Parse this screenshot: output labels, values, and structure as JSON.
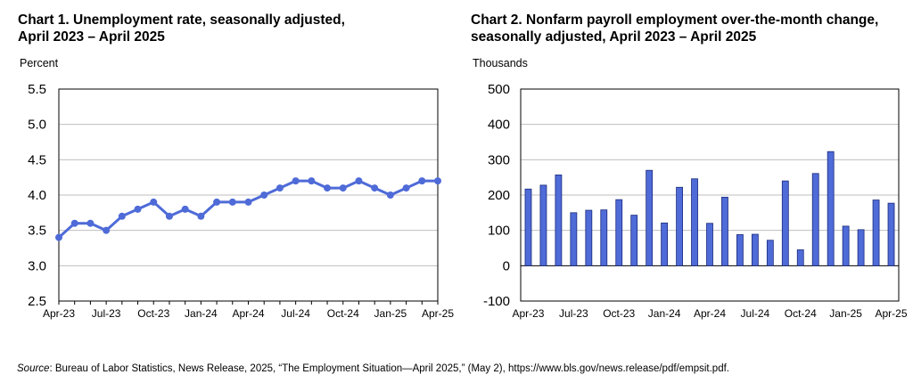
{
  "source_note": {
    "label": "Source",
    "text": ": Bureau of Labor Statistics, News Release, 2025, “The Employment Situation—April 2025,” (May 2), https://www.bls.gov/news.release/pdf/empsit.pdf."
  },
  "colors": {
    "series": "#4F6BD8",
    "bar_fill": "#4F6BD8",
    "bar_stroke": "#1a2a7a",
    "grid": "#bfbfbf"
  },
  "chart_data": [
    {
      "type": "line",
      "title": "Chart 1. Unemployment rate, seasonally adjusted,",
      "subtitle": "April 2023 – April 2025",
      "ylabel": "Percent",
      "ylim": [
        2.5,
        5.5
      ],
      "yticks": [
        "2.5",
        "3.0",
        "3.5",
        "4.0",
        "4.5",
        "5.0",
        "5.5"
      ],
      "grid": true,
      "legend": "none",
      "x": [
        "Apr-23",
        "May-23",
        "Jun-23",
        "Jul-23",
        "Aug-23",
        "Sep-23",
        "Oct-23",
        "Nov-23",
        "Dec-23",
        "Jan-24",
        "Feb-24",
        "Mar-24",
        "Apr-24",
        "May-24",
        "Jun-24",
        "Jul-24",
        "Aug-24",
        "Sep-24",
        "Oct-24",
        "Nov-24",
        "Dec-24",
        "Jan-25",
        "Feb-25",
        "Mar-25",
        "Apr-25"
      ],
      "xtick_labels": [
        "Apr-23",
        "Jul-23",
        "Oct-23",
        "Jan-24",
        "Apr-24",
        "Jul-24",
        "Oct-24",
        "Jan-25",
        "Apr-25"
      ],
      "values": [
        3.4,
        3.6,
        3.6,
        3.5,
        3.7,
        3.8,
        3.9,
        3.7,
        3.8,
        3.7,
        3.9,
        3.9,
        3.9,
        4.0,
        4.1,
        4.2,
        4.2,
        4.1,
        4.1,
        4.2,
        4.1,
        4.0,
        4.1,
        4.2,
        4.2
      ]
    },
    {
      "type": "bar",
      "title": "Chart 2. Nonfarm payroll employment over-the-month change,",
      "subtitle": "seasonally adjusted, April 2023 – April 2025",
      "ylabel": "Thousands",
      "ylim": [
        -100,
        500
      ],
      "yticks": [
        "-100",
        "0",
        "100",
        "200",
        "300",
        "400",
        "500"
      ],
      "grid": true,
      "legend": "none",
      "categories": [
        "Apr-23",
        "May-23",
        "Jun-23",
        "Jul-23",
        "Aug-23",
        "Sep-23",
        "Oct-23",
        "Nov-23",
        "Dec-23",
        "Jan-24",
        "Feb-24",
        "Mar-24",
        "Apr-24",
        "May-24",
        "Jun-24",
        "Jul-24",
        "Aug-24",
        "Sep-24",
        "Oct-24",
        "Nov-24",
        "Dec-24",
        "Jan-25",
        "Feb-25",
        "Mar-25",
        "Apr-25"
      ],
      "xtick_labels": [
        "Apr-23",
        "Jul-23",
        "Oct-23",
        "Jan-24",
        "Apr-24",
        "Jul-24",
        "Oct-24",
        "Jan-25",
        "Apr-25"
      ],
      "values": [
        217,
        228,
        257,
        150,
        157,
        158,
        187,
        143,
        270,
        121,
        222,
        246,
        120,
        194,
        88,
        89,
        72,
        240,
        45,
        261,
        323,
        112,
        102,
        186,
        177
      ]
    }
  ]
}
